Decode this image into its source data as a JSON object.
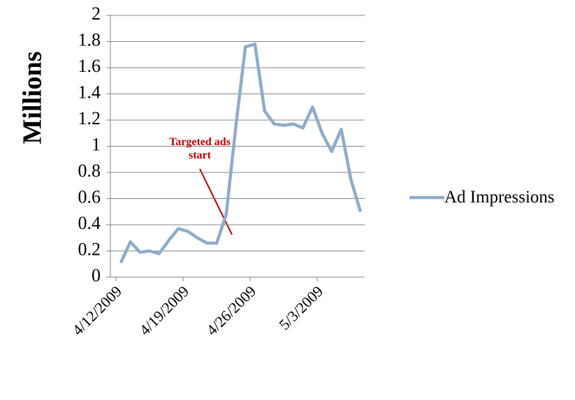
{
  "chart_data": {
    "type": "line",
    "y_label": "Millions",
    "annotation": "Targeted ads start",
    "categories": [
      "4/12/2009",
      null,
      null,
      null,
      null,
      null,
      null,
      "4/19/2009",
      null,
      null,
      null,
      null,
      null,
      null,
      "4/26/2009",
      null,
      null,
      null,
      null,
      null,
      null,
      "5/3/2009",
      null,
      null,
      null,
      null
    ],
    "series": [
      {
        "name": "Ad Impressions",
        "color": "#8eacca",
        "values": [
          0.11,
          0.27,
          0.19,
          0.2,
          0.18,
          0.28,
          0.37,
          0.35,
          0.3,
          0.26,
          0.26,
          0.48,
          1.15,
          1.76,
          1.78,
          1.27,
          1.17,
          1.16,
          1.17,
          1.14,
          1.3,
          1.1,
          0.96,
          1.13,
          0.75,
          0.5
        ]
      }
    ],
    "ylim": [
      0,
      2
    ],
    "yticks": [
      0,
      0.2,
      0.4,
      0.6,
      0.8,
      1,
      1.2,
      1.4,
      1.6,
      1.8,
      2
    ],
    "grid": true,
    "legend": "right"
  }
}
